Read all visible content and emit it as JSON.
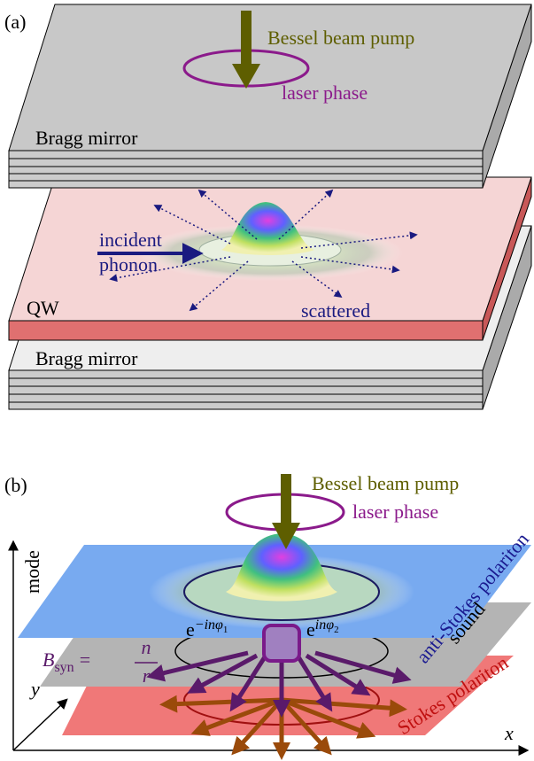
{
  "panel_a": {
    "label": "(a)",
    "pump": "Bessel beam pump",
    "phase": "laser phase",
    "top_mirror": "Bragg mirror",
    "incident": [
      "incident",
      "phonon"
    ],
    "qw": "QW",
    "scattered": "scattered",
    "bottom_mirror": "Bragg mirror"
  },
  "panel_b": {
    "label": "(b)",
    "pump": "Bessel beam pump",
    "phase": "laser phase",
    "axis_mode": "mode",
    "axis_y": "y",
    "axis_x": "x",
    "layers": [
      "anti-Stokes polariton",
      "sound",
      "Stokes polariton"
    ],
    "formula": {
      "symbol": "B",
      "subscript": "syn",
      "equals": "=",
      "numerator": "n",
      "denominator": "r"
    },
    "phase_left": {
      "base": "e",
      "exponent": "−inφ",
      "index": "1"
    },
    "phase_right": {
      "base": "e",
      "exponent": "inφ",
      "index": "2"
    }
  }
}
